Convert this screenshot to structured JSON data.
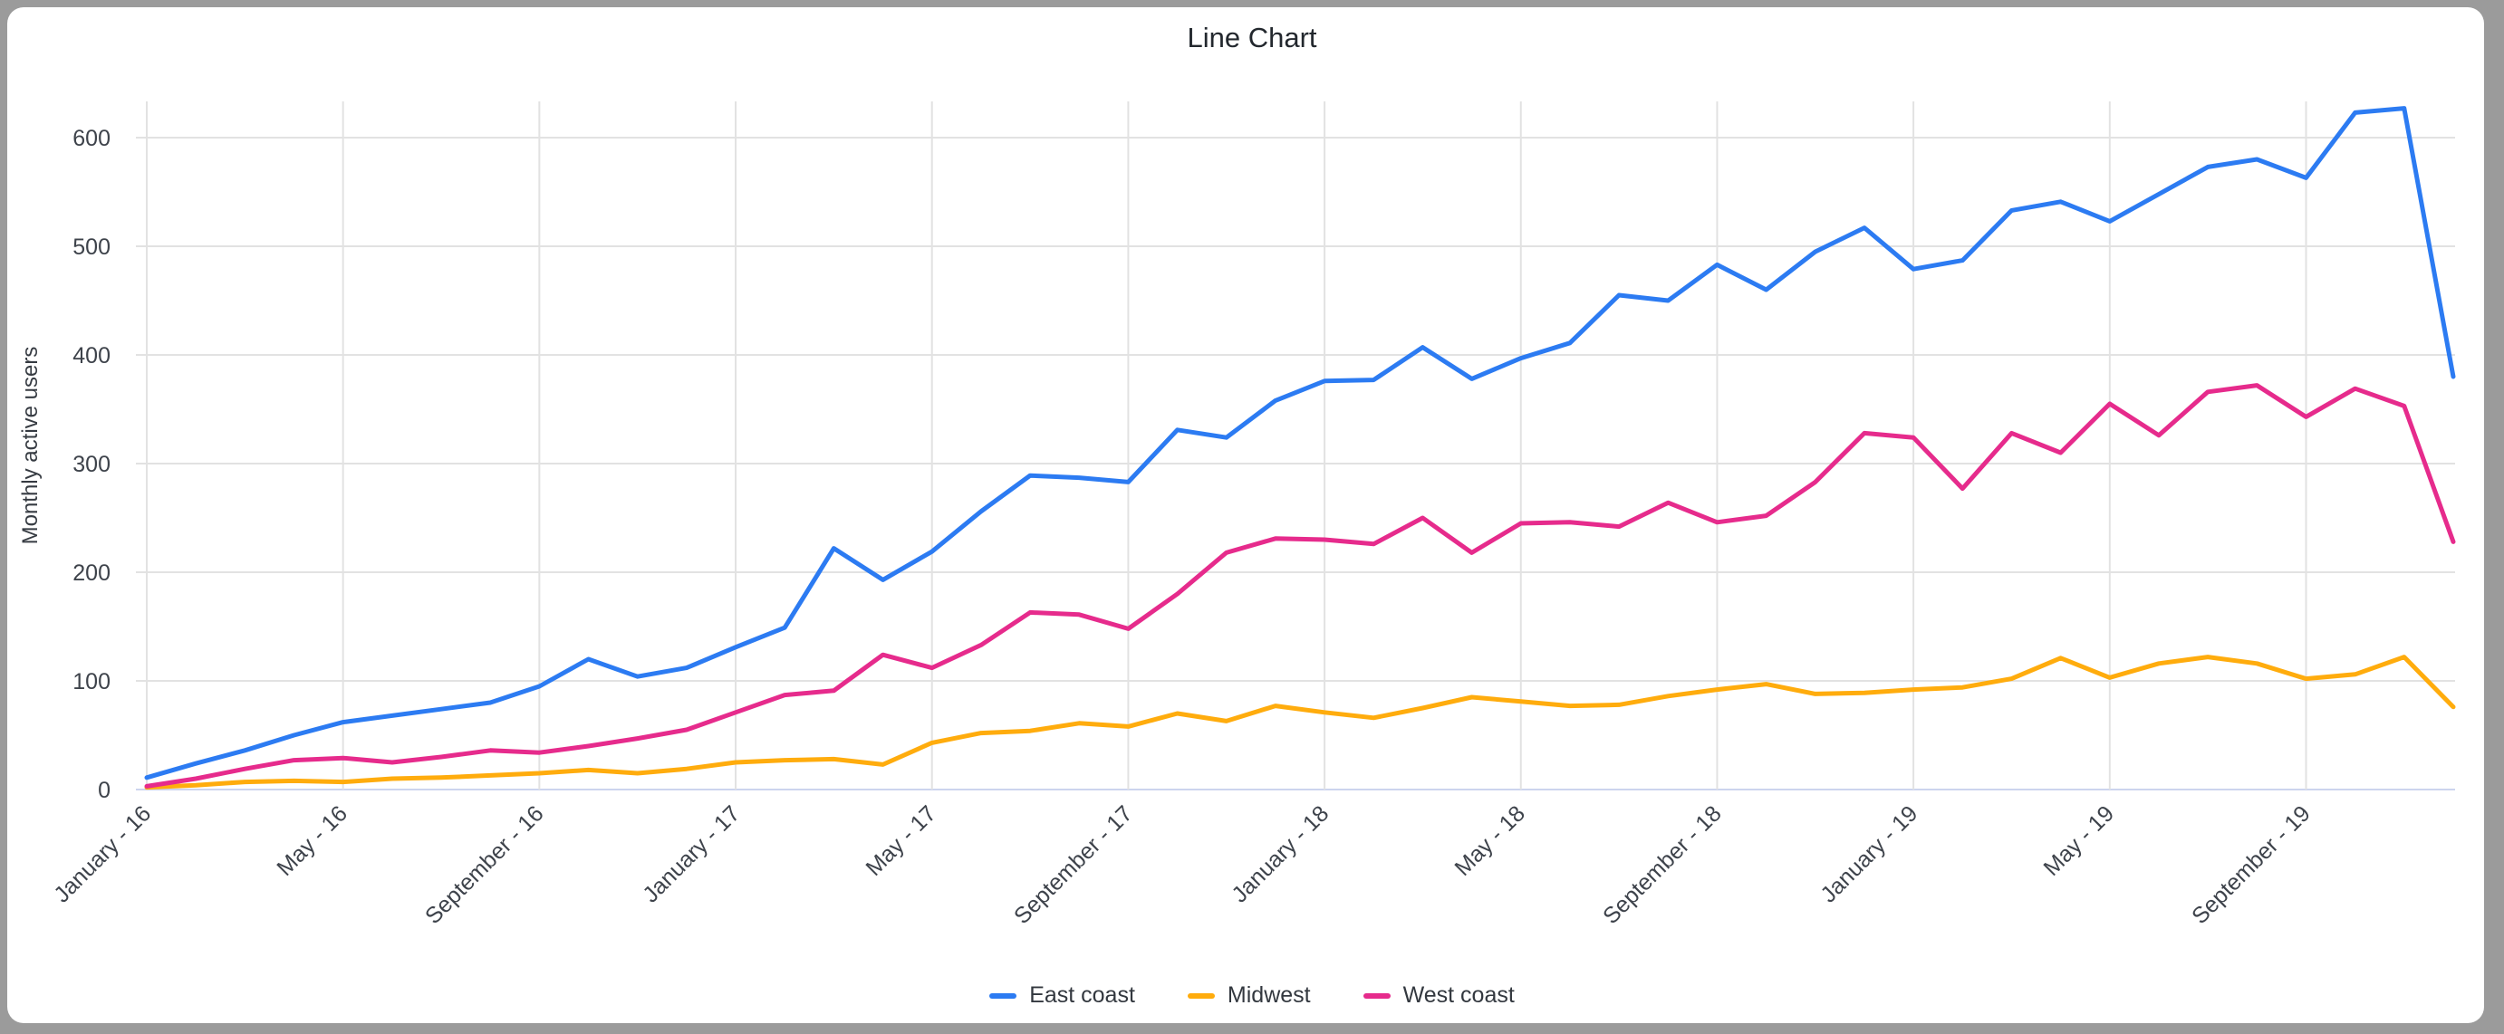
{
  "title": "Line Chart",
  "y_axis": {
    "label": "Monthly active users",
    "ticks": [
      0,
      100,
      200,
      300,
      400,
      500,
      600
    ]
  },
  "x_axis": {
    "tick_labels": [
      "January - 16",
      "May - 16",
      "September - 16",
      "January - 17",
      "May - 17",
      "September - 17",
      "January - 18",
      "May - 18",
      "September - 18",
      "January - 19",
      "May - 19",
      "September - 19"
    ],
    "months_per_tick": 4
  },
  "legend": [
    {
      "label": "East coast",
      "color": "#2c7bf2"
    },
    {
      "label": "Midwest",
      "color": "#ffac0d"
    },
    {
      "label": "West coast",
      "color": "#e62b8c"
    }
  ],
  "colors": {
    "grid": "#e2e2e2",
    "baseline": "#ccd4ee",
    "tick_text": "#3e434b",
    "card_background": "#ffffff",
    "frame_background": "#9b9b9b"
  },
  "chart_data": {
    "type": "line",
    "title": "Line Chart",
    "xlabel": "",
    "ylabel": "Monthly active users",
    "ylim": [
      0,
      635
    ],
    "grid": true,
    "legend_position": "bottom",
    "x_start": "January - 16",
    "x_end": "December - 19",
    "x_interval_months": 1,
    "points_per_series": 48,
    "x_tick_labels": [
      "January - 16",
      "May - 16",
      "September - 16",
      "January - 17",
      "May - 17",
      "September - 17",
      "January - 18",
      "May - 18",
      "September - 18",
      "January - 19",
      "May - 19",
      "September - 19"
    ],
    "series": [
      {
        "name": "East coast",
        "color": "#2c7bf2",
        "values": [
          11,
          24,
          36,
          50,
          62,
          68,
          74,
          80,
          95,
          120,
          104,
          112,
          131,
          149,
          222,
          193,
          219,
          256,
          289,
          287,
          283,
          331,
          324,
          358,
          376,
          377,
          407,
          378,
          397,
          411,
          455,
          450,
          483,
          460,
          495,
          517,
          479,
          487,
          533,
          541,
          523,
          548,
          573,
          580,
          563,
          623,
          627,
          380
        ]
      },
      {
        "name": "Midwest",
        "color": "#ffac0d",
        "values": [
          2,
          4,
          7,
          8,
          7,
          10,
          11,
          13,
          15,
          18,
          15,
          19,
          25,
          27,
          28,
          23,
          43,
          52,
          54,
          61,
          58,
          70,
          63,
          77,
          71,
          66,
          75,
          85,
          81,
          77,
          78,
          86,
          92,
          97,
          88,
          89,
          92,
          94,
          102,
          121,
          103,
          116,
          122,
          116,
          102,
          106,
          122,
          76
        ]
      },
      {
        "name": "West coast",
        "color": "#e62b8c",
        "values": [
          3,
          10,
          19,
          27,
          29,
          25,
          30,
          36,
          34,
          40,
          47,
          55,
          71,
          87,
          91,
          124,
          112,
          133,
          163,
          161,
          148,
          180,
          218,
          231,
          230,
          226,
          250,
          218,
          245,
          246,
          242,
          264,
          246,
          252,
          283,
          328,
          324,
          277,
          328,
          310,
          355,
          326,
          366,
          372,
          343,
          369,
          353,
          228
        ]
      }
    ]
  }
}
